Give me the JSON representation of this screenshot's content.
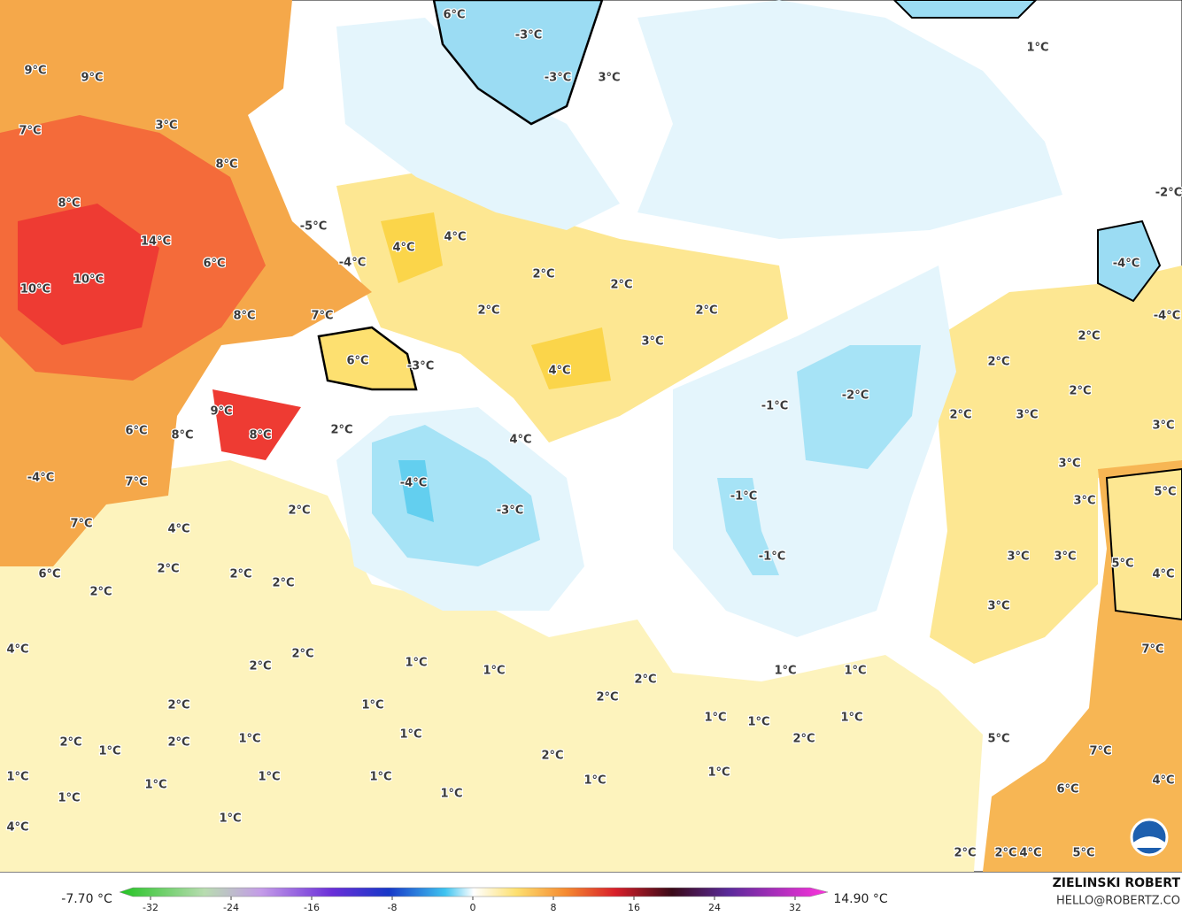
{
  "map": {
    "labels": [
      "6°C",
      "-3°C",
      "-3°C",
      "3°C",
      "1°C",
      "9°C",
      "9°C",
      "7°C",
      "3°C",
      "8°C",
      "8°C",
      "14°C",
      "6°C",
      "-5°C",
      "-4°C",
      "4°C",
      "4°C",
      "10°C",
      "10°C",
      "8°C",
      "7°C",
      "2°C",
      "2°C",
      "2°C",
      "2°C",
      "3°C",
      "6°C",
      "-3°C",
      "4°C",
      "2°C",
      "2°C",
      "2°C",
      "-2°C",
      "-1°C",
      "9°C",
      "6°C",
      "8°C",
      "8°C",
      "2°C",
      "4°C",
      "2°C",
      "3°C",
      "3°C",
      "3°C",
      "-2°C",
      "-4°C",
      "-4°C",
      "-4°C",
      "7°C",
      "-4°C",
      "-1°C",
      "2°C",
      "-3°C",
      "3°C",
      "5°C",
      "7°C",
      "4°C",
      "-1°C",
      "3°C",
      "3°C",
      "5°C",
      "2°C",
      "2°C",
      "2°C",
      "6°C",
      "4°C",
      "2°C",
      "3°C",
      "4°C",
      "2°C",
      "2°C",
      "1°C",
      "1°C",
      "1°C",
      "1°C",
      "7°C",
      "2°C",
      "2°C",
      "2°C",
      "1°C",
      "1°C",
      "1°C",
      "1°C",
      "1°C",
      "2°C",
      "1°C",
      "2°C",
      "2°C",
      "1°C",
      "5°C",
      "7°C",
      "2°C",
      "1°C",
      "1°C",
      "1°C",
      "1°C",
      "1°C",
      "1°C",
      "1°C",
      "1°C",
      "6°C",
      "4°C",
      "1°C",
      "4°C",
      "2°C",
      "2°C",
      "4°C",
      "5°C"
    ]
  },
  "colorbar": {
    "min_label": "-7.70 °C",
    "max_label": "14.90 °C",
    "ticks": [
      -32,
      -24,
      -16,
      -8,
      0,
      8,
      16,
      24,
      32
    ]
  },
  "credit": {
    "name": "ZIELINSKI ROBERT",
    "email": "HELLO@ROBERTZ.CO"
  }
}
